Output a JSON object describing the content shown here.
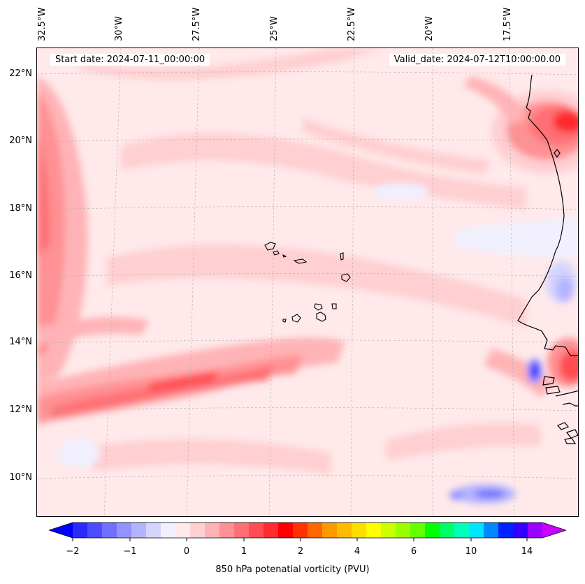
{
  "map": {
    "start_date": "Start date: 2024-07-11_00:00:00",
    "valid_date": "Valid_date: 2024-07-12T10:00:00.00",
    "longitude_labels": [
      "32.5°W",
      "30°W",
      "27.5°W",
      "25°W",
      "22.5°W",
      "20°W",
      "17.5°W"
    ],
    "latitude_labels": [
      "22°N",
      "20°N",
      "18°N",
      "16°N",
      "14°N",
      "12°N",
      "10°N"
    ]
  },
  "colorbar": {
    "label": "850 hPa potenatial vorticity (PVU)",
    "tick_labels": [
      "−2",
      "−1",
      "0",
      "1",
      "2",
      "4",
      "6",
      "10",
      "14"
    ],
    "colors": [
      "#0000ff",
      "#2a2aff",
      "#4d4dff",
      "#7070ff",
      "#9393ff",
      "#b3b3ff",
      "#d4d4ff",
      "#f0f0ff",
      "#ffe9ea",
      "#ffcfd2",
      "#ffb3b6",
      "#ff9093",
      "#ff7074",
      "#ff4d51",
      "#ff2b2f",
      "#ff0000",
      "#ff3300",
      "#ff6600",
      "#ff9900",
      "#ffbb00",
      "#ffdd00",
      "#ffff00",
      "#ccff00",
      "#99ff00",
      "#66ff00",
      "#00ff00",
      "#00ff66",
      "#00ffbb",
      "#00e5ff",
      "#0088ff",
      "#0022ff",
      "#3300ff",
      "#9900ff",
      "#cc00ff"
    ]
  }
}
